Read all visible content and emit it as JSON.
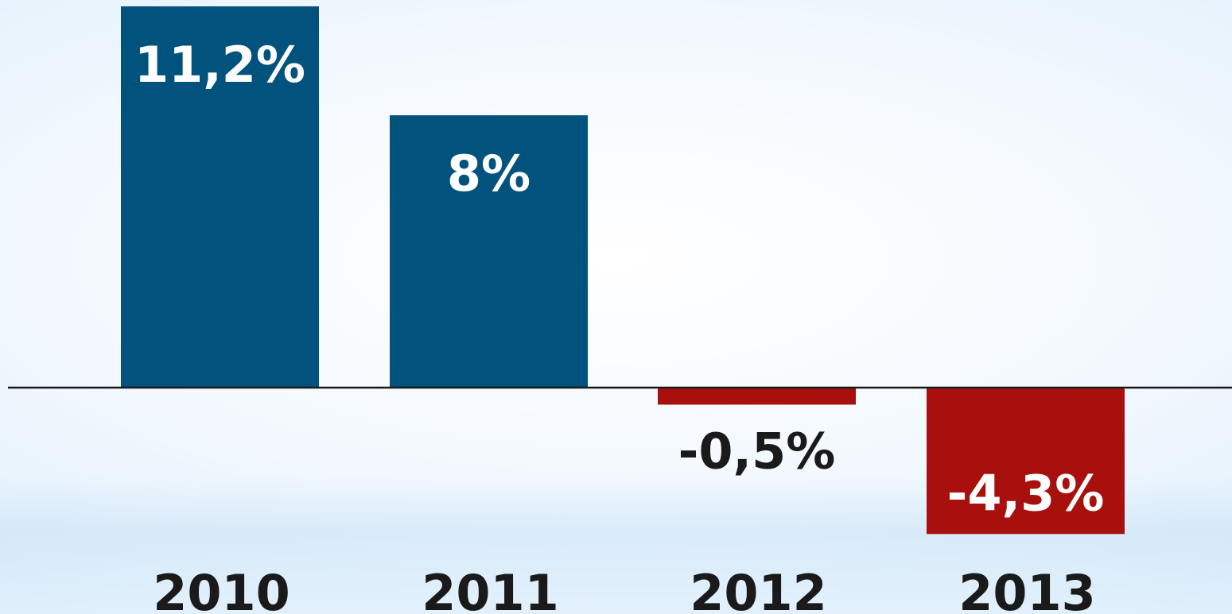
{
  "colors": {
    "positive": "#02527e",
    "negative": "#a8100d",
    "axis": "#1a1a1a",
    "label_on_bar": "#ffffff",
    "label_off_bar": "#1a1a1a"
  },
  "chart_data": {
    "type": "bar",
    "categories": [
      "2010",
      "2011",
      "2012",
      "2013"
    ],
    "values": [
      11.2,
      8.0,
      -0.5,
      -4.3
    ],
    "data_labels": [
      "11,2%",
      "8%",
      "-0,5%",
      "-4,3%"
    ],
    "title": "",
    "xlabel": "",
    "ylabel": "",
    "ylim": [
      -4.3,
      11.2
    ],
    "grid": false,
    "legend": "none"
  }
}
